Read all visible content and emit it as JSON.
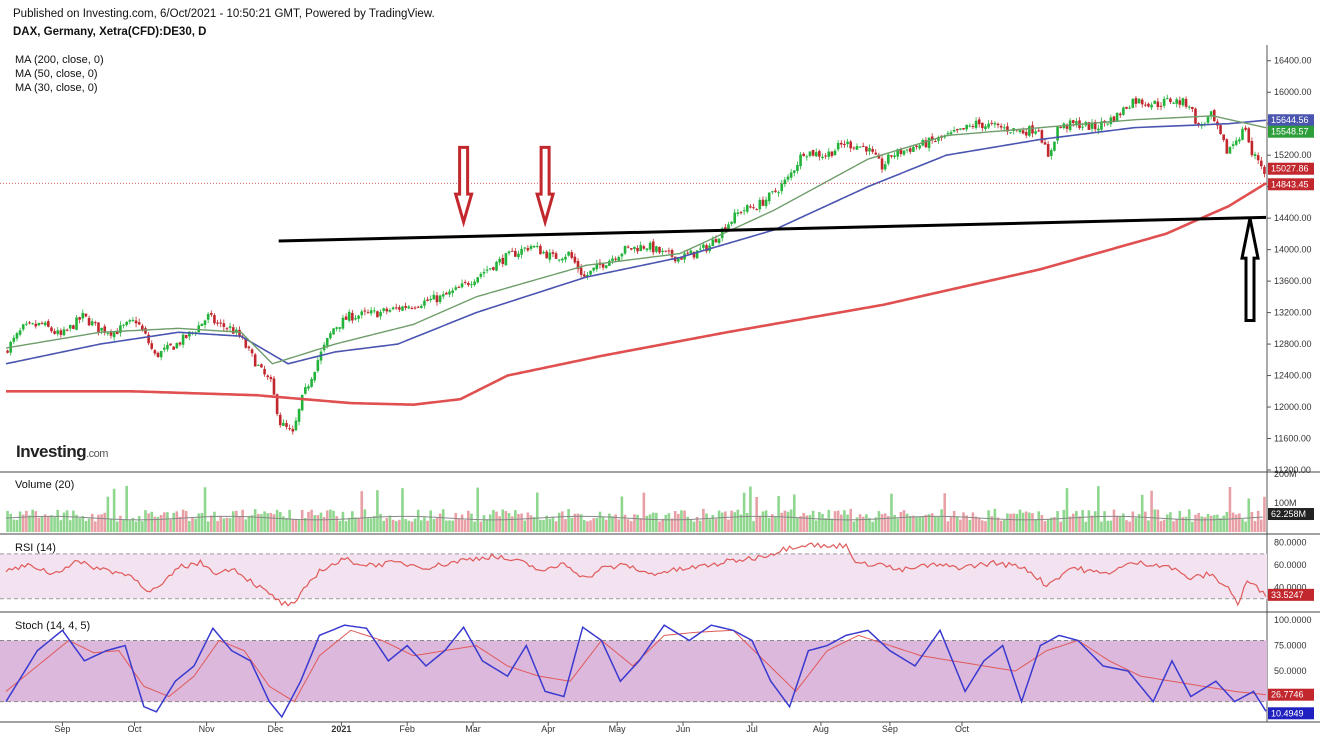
{
  "header": {
    "published": "Published on Investing.com, 6/Oct/2021 - 10:50:21 GMT, Powered by TradingView.",
    "instrument": "DAX, Germany, Xetra(CFD):DE30, D"
  },
  "legend": [
    "MA (200, close, 0)",
    "MA (50, close, 0)",
    "MA (30, close, 0)"
  ],
  "logo": {
    "main": "Investing",
    "suffix": ".com"
  },
  "colors": {
    "up": "#22b33a",
    "down": "#c1272d",
    "ma200": "#e05050",
    "ma50": "#4a55b0",
    "ma30": "#6f9d6b",
    "rsi": "#e05a5a",
    "stoch_k": "#3a3ad0",
    "stoch_d": "#e05a5a",
    "rsi_band": "#f3e3f1",
    "stoch_band": "#dcb8dc"
  },
  "chart_data": [
    {
      "type": "candlestick",
      "name": "price",
      "ylim": [
        11200,
        16600
      ],
      "y_ticks": [
        "16400.00",
        "16000.00",
        "15600.00",
        "15200.00",
        "14800.00",
        "14400.00",
        "14000.00",
        "13600.00",
        "13200.00",
        "12800.00",
        "12400.00",
        "12000.00",
        "11600.00",
        "11200.00"
      ],
      "x_ticks": [
        "Sep",
        "Oct",
        "Nov",
        "Dec",
        "2021",
        "Feb",
        "Mar",
        "Apr",
        "May",
        "Jun",
        "Jul",
        "Aug",
        "Sep",
        "Oct"
      ],
      "last_price_labels": {
        "ma50": "15644.56",
        "ma30": "15548.57",
        "close": "15027.86",
        "ma200_or_line": "14843.45"
      },
      "close_path": [
        [
          0,
          12700
        ],
        [
          6,
          13000
        ],
        [
          12,
          13050
        ],
        [
          18,
          12900
        ],
        [
          25,
          13150
        ],
        [
          30,
          13000
        ],
        [
          35,
          12950
        ],
        [
          42,
          13100
        ],
        [
          45,
          12900
        ],
        [
          48,
          12650
        ],
        [
          55,
          12800
        ],
        [
          60,
          12950
        ],
        [
          65,
          13150
        ],
        [
          68,
          13050
        ],
        [
          72,
          13000
        ],
        [
          75,
          12900
        ],
        [
          78,
          12700
        ],
        [
          82,
          12450
        ],
        [
          85,
          12300
        ],
        [
          88,
          11800
        ],
        [
          92,
          11650
        ],
        [
          95,
          12100
        ],
        [
          100,
          12600
        ],
        [
          105,
          13000
        ],
        [
          110,
          13150
        ],
        [
          120,
          13200
        ],
        [
          130,
          13300
        ],
        [
          140,
          13400
        ],
        [
          145,
          13500
        ],
        [
          152,
          13700
        ],
        [
          160,
          13900
        ],
        [
          168,
          14050
        ],
        [
          175,
          13900
        ],
        [
          180,
          13950
        ],
        [
          185,
          13650
        ],
        [
          190,
          13800
        ],
        [
          198,
          14000
        ],
        [
          205,
          14050
        ],
        [
          210,
          13950
        ],
        [
          215,
          13900
        ],
        [
          220,
          13950
        ],
        [
          225,
          14050
        ],
        [
          230,
          14300
        ],
        [
          235,
          14500
        ],
        [
          240,
          14550
        ],
        [
          245,
          14700
        ],
        [
          250,
          14900
        ],
        [
          255,
          15250
        ],
        [
          262,
          15200
        ],
        [
          268,
          15350
        ],
        [
          275,
          15300
        ],
        [
          280,
          15050
        ],
        [
          283,
          15200
        ],
        [
          290,
          15300
        ],
        [
          298,
          15400
        ],
        [
          305,
          15500
        ],
        [
          310,
          15600
        ],
        [
          318,
          15550
        ],
        [
          325,
          15500
        ],
        [
          330,
          15550
        ],
        [
          333,
          15150
        ],
        [
          336,
          15550
        ],
        [
          342,
          15600
        ],
        [
          348,
          15550
        ],
        [
          355,
          15700
        ],
        [
          360,
          15900
        ],
        [
          368,
          15850
        ],
        [
          372,
          15900
        ],
        [
          378,
          15850
        ],
        [
          381,
          15550
        ],
        [
          385,
          15700
        ],
        [
          390,
          15250
        ],
        [
          393,
          15400
        ],
        [
          396,
          15550
        ],
        [
          398,
          15200
        ],
        [
          400,
          15150
        ],
        [
          402,
          15000
        ]
      ],
      "ma200_path": [
        [
          0,
          12200
        ],
        [
          40,
          12200
        ],
        [
          80,
          12150
        ],
        [
          110,
          12050
        ],
        [
          130,
          12030
        ],
        [
          145,
          12100
        ],
        [
          160,
          12400
        ],
        [
          190,
          12650
        ],
        [
          230,
          12950
        ],
        [
          280,
          13300
        ],
        [
          330,
          13750
        ],
        [
          370,
          14200
        ],
        [
          390,
          14550
        ],
        [
          402,
          14843
        ]
      ],
      "ma50_path": [
        [
          0,
          12550
        ],
        [
          30,
          12800
        ],
        [
          55,
          12950
        ],
        [
          75,
          12900
        ],
        [
          90,
          12550
        ],
        [
          105,
          12700
        ],
        [
          125,
          12800
        ],
        [
          150,
          13200
        ],
        [
          185,
          13650
        ],
        [
          215,
          13900
        ],
        [
          245,
          14250
        ],
        [
          275,
          14800
        ],
        [
          300,
          15200
        ],
        [
          330,
          15400
        ],
        [
          360,
          15550
        ],
        [
          390,
          15600
        ],
        [
          402,
          15644
        ]
      ],
      "ma30_path": [
        [
          0,
          12750
        ],
        [
          30,
          12950
        ],
        [
          55,
          13000
        ],
        [
          75,
          12950
        ],
        [
          85,
          12550
        ],
        [
          105,
          12800
        ],
        [
          130,
          13050
        ],
        [
          150,
          13400
        ],
        [
          185,
          13800
        ],
        [
          215,
          13950
        ],
        [
          245,
          14500
        ],
        [
          275,
          15150
        ],
        [
          300,
          15450
        ],
        [
          330,
          15550
        ],
        [
          360,
          15650
        ],
        [
          385,
          15700
        ],
        [
          402,
          15549
        ]
      ],
      "annotations": {
        "trendline": [
          [
            87,
            14110
          ],
          [
            402,
            14410
          ]
        ],
        "red_arrows_at_x": [
          146,
          172
        ],
        "black_arrow_x": 402
      }
    },
    {
      "type": "bar",
      "name": "Volume (20)",
      "ylim": [
        0,
        200
      ],
      "y_ticks": [
        "200M",
        "100M"
      ],
      "last_label": "62.258M"
    },
    {
      "type": "line",
      "name": "RSI (14)",
      "ylim": [
        20,
        85
      ],
      "y_ticks": [
        "80.0000",
        "60.0000",
        "40.0000"
      ],
      "band": [
        30,
        70
      ],
      "last_label": "33.5247",
      "path": [
        [
          0,
          55
        ],
        [
          8,
          60
        ],
        [
          15,
          52
        ],
        [
          22,
          63
        ],
        [
          30,
          57
        ],
        [
          38,
          52
        ],
        [
          42,
          48
        ],
        [
          45,
          35
        ],
        [
          50,
          42
        ],
        [
          55,
          58
        ],
        [
          62,
          62
        ],
        [
          68,
          52
        ],
        [
          72,
          58
        ],
        [
          76,
          50
        ],
        [
          80,
          42
        ],
        [
          84,
          34
        ],
        [
          88,
          26
        ],
        [
          92,
          24
        ],
        [
          96,
          42
        ],
        [
          100,
          55
        ],
        [
          108,
          65
        ],
        [
          115,
          60
        ],
        [
          125,
          62
        ],
        [
          135,
          58
        ],
        [
          145,
          64
        ],
        [
          155,
          68
        ],
        [
          165,
          62
        ],
        [
          172,
          54
        ],
        [
          178,
          62
        ],
        [
          185,
          48
        ],
        [
          190,
          57
        ],
        [
          198,
          60
        ],
        [
          205,
          52
        ],
        [
          215,
          56
        ],
        [
          225,
          60
        ],
        [
          232,
          64
        ],
        [
          238,
          66
        ],
        [
          244,
          70
        ],
        [
          250,
          76
        ],
        [
          256,
          79
        ],
        [
          262,
          76
        ],
        [
          268,
          78
        ],
        [
          272,
          60
        ],
        [
          278,
          62
        ],
        [
          285,
          55
        ],
        [
          295,
          60
        ],
        [
          305,
          58
        ],
        [
          315,
          62
        ],
        [
          325,
          58
        ],
        [
          332,
          42
        ],
        [
          340,
          58
        ],
        [
          350,
          52
        ],
        [
          360,
          62
        ],
        [
          370,
          60
        ],
        [
          378,
          48
        ],
        [
          384,
          52
        ],
        [
          390,
          40
        ],
        [
          393,
          25
        ],
        [
          396,
          46
        ],
        [
          402,
          33.5
        ]
      ]
    },
    {
      "type": "line",
      "name": "Stoch (14, 4, 5)",
      "ylim": [
        0,
        105
      ],
      "y_ticks": [
        "100.0000",
        "75.0000",
        "50.0000"
      ],
      "band": [
        20,
        80
      ],
      "last_labels": {
        "d": "26.7746",
        "k": "10.4949"
      },
      "k_path": [
        [
          0,
          20
        ],
        [
          10,
          70
        ],
        [
          18,
          90
        ],
        [
          25,
          60
        ],
        [
          32,
          70
        ],
        [
          38,
          75
        ],
        [
          44,
          15
        ],
        [
          48,
          10
        ],
        [
          54,
          40
        ],
        [
          60,
          55
        ],
        [
          66,
          92
        ],
        [
          72,
          70
        ],
        [
          78,
          60
        ],
        [
          84,
          20
        ],
        [
          88,
          5
        ],
        [
          94,
          40
        ],
        [
          100,
          85
        ],
        [
          108,
          95
        ],
        [
          115,
          92
        ],
        [
          122,
          60
        ],
        [
          128,
          75
        ],
        [
          134,
          55
        ],
        [
          140,
          70
        ],
        [
          146,
          93
        ],
        [
          152,
          60
        ],
        [
          160,
          45
        ],
        [
          166,
          75
        ],
        [
          172,
          30
        ],
        [
          178,
          25
        ],
        [
          184,
          93
        ],
        [
          190,
          80
        ],
        [
          196,
          40
        ],
        [
          202,
          60
        ],
        [
          210,
          95
        ],
        [
          218,
          80
        ],
        [
          225,
          95
        ],
        [
          232,
          90
        ],
        [
          238,
          80
        ],
        [
          244,
          40
        ],
        [
          250,
          15
        ],
        [
          256,
          70
        ],
        [
          262,
          75
        ],
        [
          268,
          85
        ],
        [
          275,
          90
        ],
        [
          282,
          70
        ],
        [
          290,
          55
        ],
        [
          298,
          90
        ],
        [
          306,
          30
        ],
        [
          312,
          60
        ],
        [
          318,
          75
        ],
        [
          324,
          20
        ],
        [
          330,
          75
        ],
        [
          336,
          85
        ],
        [
          342,
          80
        ],
        [
          350,
          55
        ],
        [
          358,
          50
        ],
        [
          366,
          20
        ],
        [
          372,
          60
        ],
        [
          378,
          25
        ],
        [
          386,
          40
        ],
        [
          392,
          20
        ],
        [
          398,
          30
        ],
        [
          402,
          10.5
        ]
      ],
      "d_path": [
        [
          0,
          30
        ],
        [
          12,
          60
        ],
        [
          20,
          80
        ],
        [
          28,
          68
        ],
        [
          36,
          70
        ],
        [
          44,
          35
        ],
        [
          52,
          25
        ],
        [
          60,
          45
        ],
        [
          68,
          80
        ],
        [
          76,
          70
        ],
        [
          84,
          35
        ],
        [
          92,
          20
        ],
        [
          100,
          65
        ],
        [
          110,
          90
        ],
        [
          120,
          80
        ],
        [
          130,
          65
        ],
        [
          140,
          70
        ],
        [
          150,
          75
        ],
        [
          160,
          55
        ],
        [
          170,
          45
        ],
        [
          180,
          40
        ],
        [
          190,
          80
        ],
        [
          200,
          55
        ],
        [
          210,
          85
        ],
        [
          220,
          88
        ],
        [
          232,
          90
        ],
        [
          242,
          60
        ],
        [
          252,
          30
        ],
        [
          262,
          70
        ],
        [
          272,
          85
        ],
        [
          282,
          75
        ],
        [
          292,
          65
        ],
        [
          302,
          60
        ],
        [
          312,
          55
        ],
        [
          322,
          50
        ],
        [
          332,
          70
        ],
        [
          342,
          80
        ],
        [
          352,
          60
        ],
        [
          362,
          45
        ],
        [
          372,
          40
        ],
        [
          382,
          35
        ],
        [
          392,
          30
        ],
        [
          402,
          26.8
        ]
      ]
    }
  ]
}
